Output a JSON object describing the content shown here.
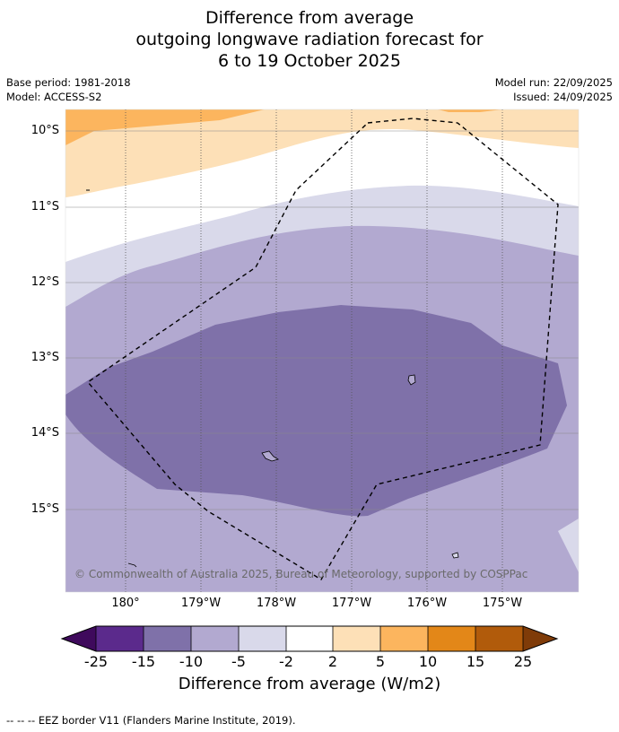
{
  "title": {
    "line1": "Difference from average",
    "line2": "outgoing longwave radiation forecast for",
    "line3": "6 to 19 October 2025"
  },
  "meta": {
    "base_period": "Base period: 1981-2018",
    "model": "Model: ACCESS-S2",
    "model_run": "Model run: 22/09/2025",
    "issued": "Issued: 24/09/2025"
  },
  "map": {
    "lat_labels": [
      "10°S",
      "11°S",
      "12°S",
      "13°S",
      "14°S",
      "15°S"
    ],
    "lon_labels": [
      "180°",
      "179°W",
      "178°W",
      "177°W",
      "176°W",
      "175°W"
    ],
    "copyright": "© Commonwealth of Australia 2025, Bureau of Meteorology, supported by COSPPac"
  },
  "colorbar": {
    "ticks": [
      "-25",
      "-15",
      "-10",
      "-5",
      "-2",
      "2",
      "5",
      "10",
      "15",
      "25"
    ],
    "colors": [
      "#3f0a5c",
      "#5b2a8c",
      "#7f71a9",
      "#b2a9d0",
      "#d9d9ea",
      "#ffffff",
      "#fde0b7",
      "#fcb55e",
      "#e38718",
      "#b15b0b",
      "#7f3b08"
    ],
    "title": "Difference from average (W/m2)"
  },
  "footnote": "--  --  -- EEZ border V11 (Flanders Marine Institute, 2019)."
}
